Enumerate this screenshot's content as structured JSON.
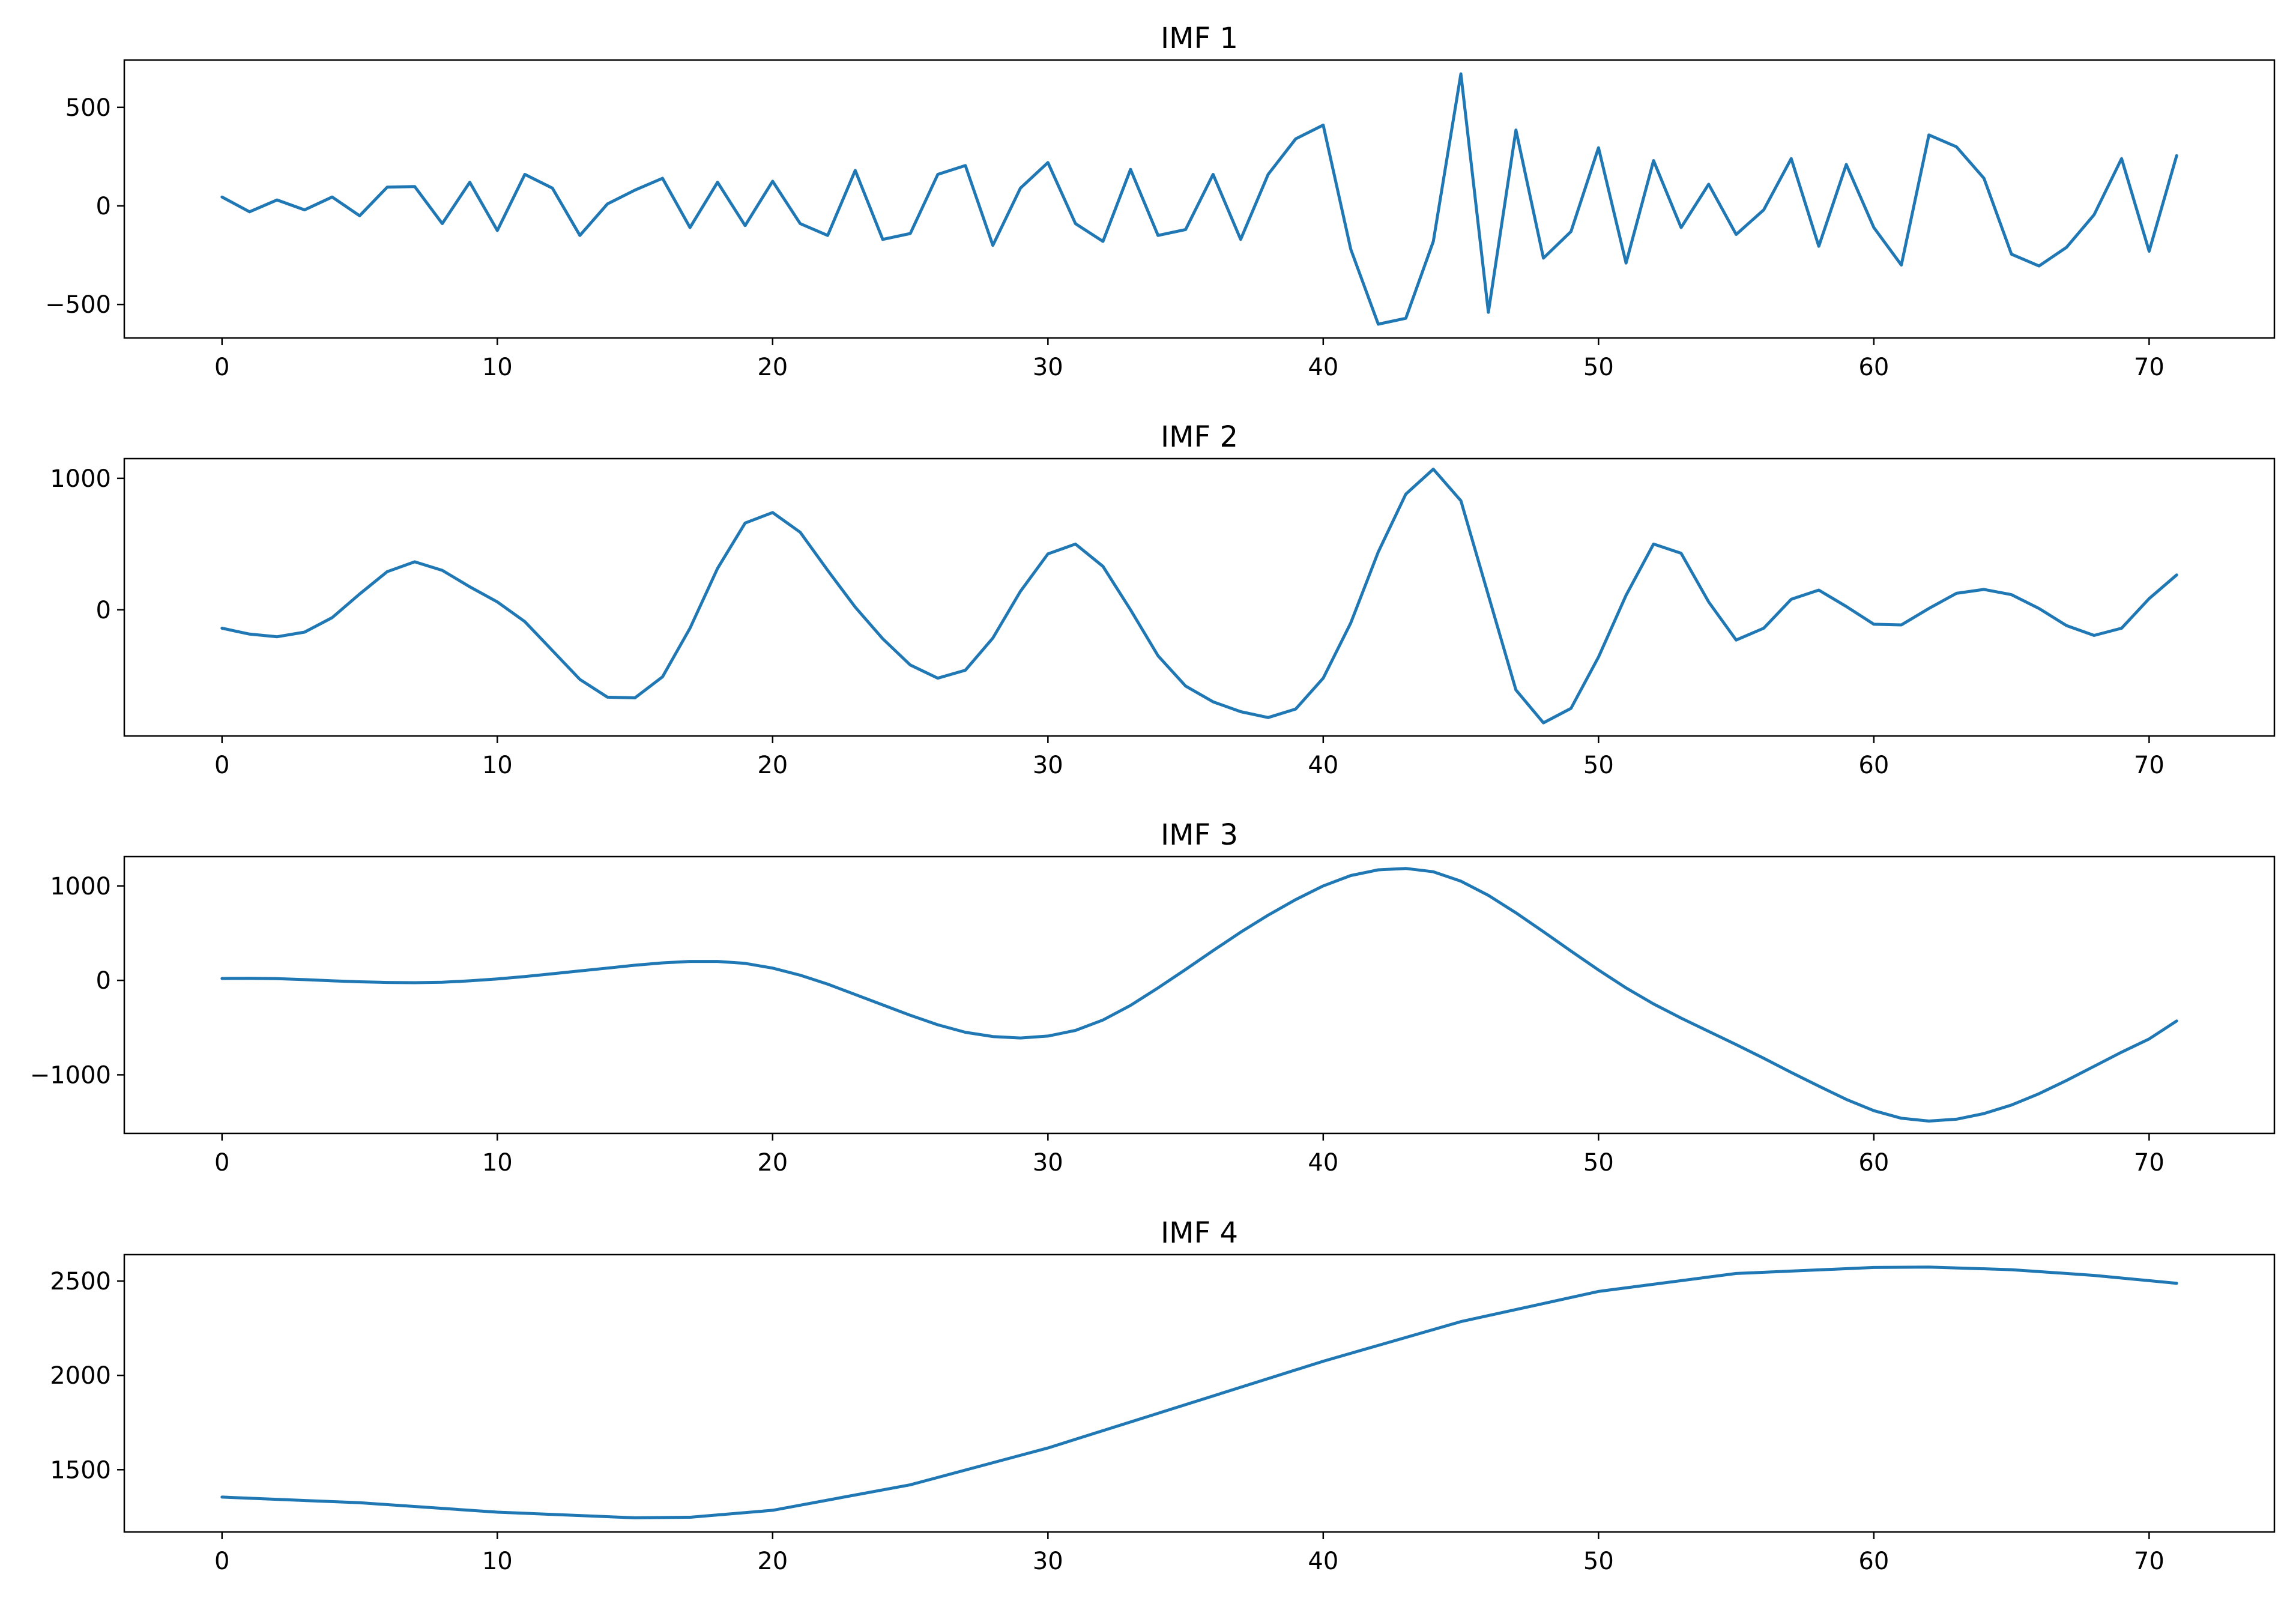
{
  "chart_data": [
    {
      "type": "line",
      "title": "IMF 1",
      "xlabel": "",
      "ylabel": "",
      "xlim": [
        -3.55,
        74.55
      ],
      "ylim": [
        -670,
        740
      ],
      "xticks": [
        0,
        10,
        20,
        30,
        40,
        50,
        60,
        70
      ],
      "yticks": [
        -500,
        0,
        500
      ],
      "ytick_labels": [
        "−500",
        "0",
        "500"
      ],
      "grid": false,
      "color": "#1f77b4",
      "x": [
        0,
        1,
        2,
        3,
        4,
        5,
        6,
        7,
        8,
        9,
        10,
        11,
        12,
        13,
        14,
        15,
        16,
        17,
        18,
        19,
        20,
        21,
        22,
        23,
        24,
        25,
        26,
        27,
        28,
        29,
        30,
        31,
        32,
        33,
        34,
        35,
        36,
        37,
        38,
        39,
        40,
        41,
        42,
        43,
        44,
        45,
        46,
        47,
        48,
        49,
        50,
        51,
        52,
        53,
        54,
        55,
        56,
        57,
        58,
        59,
        60,
        61,
        62,
        63,
        64,
        65,
        66,
        67,
        68,
        69,
        70,
        71
      ],
      "values": [
        45,
        -30,
        30,
        -20,
        45,
        -50,
        95,
        98,
        -90,
        120,
        -125,
        160,
        90,
        -150,
        10,
        80,
        140,
        -110,
        120,
        -100,
        125,
        -90,
        -150,
        180,
        -170,
        -140,
        160,
        205,
        -200,
        90,
        220,
        -90,
        -180,
        185,
        -150,
        -120,
        160,
        -170,
        160,
        340,
        410,
        -220,
        -600,
        -570,
        -180,
        670,
        -540,
        385,
        -265,
        -130,
        295,
        -290,
        230,
        -110,
        110,
        -145,
        -20,
        240,
        -205,
        210,
        -110,
        -300,
        360,
        300,
        140,
        -245,
        -305,
        -210,
        -45,
        240,
        -230,
        255
      ]
    },
    {
      "type": "line",
      "title": "IMF 2",
      "xlabel": "",
      "ylabel": "",
      "xlim": [
        -3.55,
        74.55
      ],
      "ylim": [
        -960,
        1150
      ],
      "xticks": [
        0,
        10,
        20,
        30,
        40,
        50,
        60,
        70
      ],
      "yticks": [
        0,
        1000
      ],
      "ytick_labels": [
        "0",
        "1000"
      ],
      "grid": false,
      "color": "#1f77b4",
      "x": [
        0,
        1,
        2,
        3,
        4,
        5,
        6,
        7,
        8,
        9,
        10,
        11,
        12,
        13,
        14,
        15,
        16,
        17,
        18,
        19,
        20,
        21,
        22,
        23,
        24,
        25,
        26,
        27,
        28,
        29,
        30,
        31,
        32,
        33,
        34,
        35,
        36,
        37,
        38,
        39,
        40,
        41,
        42,
        43,
        44,
        45,
        46,
        47,
        48,
        49,
        50,
        51,
        52,
        53,
        54,
        55,
        56,
        57,
        58,
        59,
        60,
        61,
        62,
        63,
        64,
        65,
        66,
        67,
        68,
        69,
        70,
        71
      ],
      "values": [
        -140,
        -185,
        -205,
        -170,
        -60,
        120,
        290,
        365,
        300,
        175,
        60,
        -90,
        -310,
        -530,
        -665,
        -670,
        -510,
        -140,
        315,
        660,
        740,
        590,
        300,
        20,
        -220,
        -420,
        -520,
        -460,
        -215,
        140,
        425,
        500,
        330,
        0,
        -350,
        -580,
        -700,
        -775,
        -820,
        -755,
        -520,
        -100,
        440,
        880,
        1070,
        830,
        110,
        -610,
        -860,
        -750,
        -360,
        110,
        500,
        430,
        60,
        -230,
        -140,
        80,
        150,
        25,
        -110,
        -115,
        10,
        125,
        155,
        115,
        10,
        -120,
        -195,
        -140,
        85,
        265
      ]
    },
    {
      "type": "line",
      "title": "IMF 3",
      "xlabel": "",
      "ylabel": "",
      "xlim": [
        -3.55,
        74.55
      ],
      "ylim": [
        -1620,
        1310
      ],
      "xticks": [
        0,
        10,
        20,
        30,
        40,
        50,
        60,
        70
      ],
      "yticks": [
        -1000,
        0,
        1000
      ],
      "ytick_labels": [
        "−1000",
        "0",
        "1000"
      ],
      "grid": false,
      "color": "#1f77b4",
      "x": [
        0,
        1,
        2,
        3,
        4,
        5,
        6,
        7,
        8,
        9,
        10,
        11,
        12,
        13,
        14,
        15,
        16,
        17,
        18,
        19,
        20,
        21,
        22,
        23,
        24,
        25,
        26,
        27,
        28,
        29,
        30,
        31,
        32,
        33,
        34,
        35,
        36,
        37,
        38,
        39,
        40,
        41,
        42,
        43,
        44,
        45,
        46,
        47,
        48,
        49,
        50,
        51,
        52,
        53,
        54,
        55,
        56,
        57,
        58,
        59,
        60,
        61,
        62,
        63,
        64,
        65,
        66,
        67,
        68,
        69,
        70,
        71
      ],
      "values": [
        20,
        22,
        18,
        8,
        -5,
        -15,
        -22,
        -25,
        -20,
        -5,
        15,
        40,
        70,
        100,
        130,
        160,
        185,
        200,
        200,
        180,
        130,
        55,
        -40,
        -150,
        -260,
        -370,
        -470,
        -550,
        -595,
        -610,
        -590,
        -530,
        -420,
        -265,
        -80,
        115,
        315,
        510,
        690,
        855,
        1000,
        1110,
        1170,
        1185,
        1150,
        1050,
        900,
        715,
        515,
        310,
        110,
        -80,
        -250,
        -400,
        -540,
        -680,
        -825,
        -975,
        -1120,
        -1260,
        -1380,
        -1460,
        -1490,
        -1470,
        -1410,
        -1320,
        -1200,
        -1060,
        -910,
        -760,
        -620,
        -430
      ]
    },
    {
      "type": "line",
      "title": "IMF 4",
      "xlabel": "",
      "ylabel": "",
      "xlim": [
        -3.55,
        74.55
      ],
      "ylim": [
        1170,
        2640
      ],
      "xticks": [
        0,
        10,
        20,
        30,
        40,
        50,
        60,
        70
      ],
      "yticks": [
        1500,
        2000,
        2500
      ],
      "ytick_labels": [
        "1500",
        "2000",
        "2500"
      ],
      "grid": false,
      "color": "#1f77b4",
      "x": [
        0,
        5,
        10,
        15,
        17,
        20,
        25,
        30,
        35,
        40,
        45,
        50,
        55,
        60,
        62,
        65,
        68,
        71
      ],
      "values": [
        1355,
        1325,
        1275,
        1245,
        1248,
        1285,
        1420,
        1615,
        1845,
        2075,
        2285,
        2445,
        2540,
        2572,
        2574,
        2560,
        2530,
        2488
      ]
    }
  ]
}
